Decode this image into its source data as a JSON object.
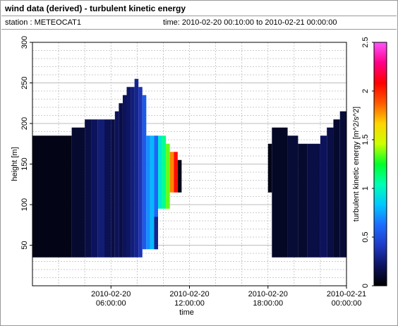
{
  "header": {
    "title": "wind data (derived) - turbulent kinetic energy",
    "station": "station : METEOCAT1",
    "time_range": "time: 2010-02-20 00:10:00 to 2010-02-21 00:00:00"
  },
  "colors": {
    "background": "#ffffff",
    "grid": "#bdbdbd",
    "frame": "#9a9a9a",
    "colormap": [
      "#000000",
      "#0d1460",
      "#1f3bc6",
      "#1d6cff",
      "#00c8ff",
      "#00ffb4",
      "#00ff2a",
      "#ccff00",
      "#ffd400",
      "#ff5a00",
      "#ff0000",
      "#ff0088",
      "#ff55ff"
    ]
  },
  "chart_data": {
    "type": "heatmap",
    "xlabel": "time",
    "ylabel": "height [m]",
    "colorbar_label": "turbulent kinetic energy [m^2/s^2]",
    "x_ticks": [
      {
        "hour": 6,
        "line1": "2010-02-20",
        "line2": "06:00:00"
      },
      {
        "hour": 12,
        "line1": "2010-02-20",
        "line2": "12:00:00"
      },
      {
        "hour": 18,
        "line1": "2010-02-20",
        "line2": "18:00:00"
      },
      {
        "hour": 24,
        "line1": "2010-02-21",
        "line2": "00:00:00"
      }
    ],
    "xlim_hours": [
      0,
      24
    ],
    "ylim": [
      0,
      300
    ],
    "y_ticks": [
      "50",
      "100",
      "150",
      "200",
      "250",
      "300"
    ],
    "y_tick_values": [
      50,
      100,
      150,
      200,
      250,
      300
    ],
    "y_grid_step": 10,
    "colorbar_ticks": [
      "0",
      "0.5",
      "1",
      "1.5",
      "2",
      "2.5"
    ],
    "colorbar_tick_values": [
      0,
      0.5,
      1,
      1.5,
      2,
      2.5
    ],
    "colorbar_range": [
      0,
      2.5
    ],
    "grid": true,
    "columns": [
      {
        "t0": 0.0,
        "t1": 3.0,
        "y0": 35,
        "y1": 185,
        "v": 0.05
      },
      {
        "t0": 3.0,
        "t1": 4.0,
        "y0": 35,
        "y1": 195,
        "v": 0.1
      },
      {
        "t0": 4.0,
        "t1": 4.5,
        "y0": 35,
        "y1": 205,
        "v": 0.15
      },
      {
        "t0": 4.5,
        "t1": 5.0,
        "y0": 35,
        "y1": 205,
        "v": 0.2
      },
      {
        "t0": 5.0,
        "t1": 5.5,
        "y0": 35,
        "y1": 205,
        "v": 0.25
      },
      {
        "t0": 5.5,
        "t1": 6.0,
        "y0": 35,
        "y1": 205,
        "v": 0.18
      },
      {
        "t0": 6.0,
        "t1": 6.3,
        "y0": 35,
        "y1": 205,
        "v": 0.15
      },
      {
        "t0": 6.3,
        "t1": 6.6,
        "y0": 35,
        "y1": 215,
        "v": 0.2
      },
      {
        "t0": 6.6,
        "t1": 6.9,
        "y0": 35,
        "y1": 225,
        "v": 0.15
      },
      {
        "t0": 6.9,
        "t1": 7.2,
        "y0": 35,
        "y1": 235,
        "v": 0.2
      },
      {
        "t0": 7.2,
        "t1": 7.5,
        "y0": 35,
        "y1": 245,
        "v": 0.22
      },
      {
        "t0": 7.5,
        "t1": 7.8,
        "y0": 35,
        "y1": 245,
        "v": 0.26
      },
      {
        "t0": 7.8,
        "t1": 8.1,
        "y0": 35,
        "y1": 255,
        "v": 0.3
      },
      {
        "t0": 8.1,
        "t1": 8.4,
        "y0": 35,
        "y1": 245,
        "v": 0.38
      },
      {
        "t0": 8.4,
        "t1": 8.7,
        "y0": 45,
        "y1": 235,
        "v": 0.55
      },
      {
        "t0": 8.7,
        "t1": 9.0,
        "y0": 45,
        "y1": 185,
        "v": 0.7
      },
      {
        "t0": 9.0,
        "t1": 9.3,
        "y0": 45,
        "y1": 185,
        "v": 0.8
      },
      {
        "t0": 9.3,
        "t1": 9.6,
        "y0": 45,
        "y1": 185,
        "v": 0.6
      },
      {
        "t0": 9.3,
        "t1": 9.6,
        "y0": 45,
        "y1": 85,
        "v": 0.3
      },
      {
        "t0": 9.6,
        "t1": 9.9,
        "y0": 95,
        "y1": 185,
        "v": 0.95
      },
      {
        "t0": 9.9,
        "t1": 10.2,
        "y0": 95,
        "y1": 185,
        "v": 1.1
      },
      {
        "t0": 10.2,
        "t1": 10.5,
        "y0": 95,
        "y1": 175,
        "v": 1.35
      },
      {
        "t0": 10.5,
        "t1": 10.8,
        "y0": 115,
        "y1": 165,
        "v": 1.8
      },
      {
        "t0": 10.8,
        "t1": 11.1,
        "y0": 115,
        "y1": 165,
        "v": 2.05
      },
      {
        "t0": 11.1,
        "t1": 11.4,
        "y0": 115,
        "y1": 155,
        "v": 0.05
      },
      {
        "t0": 18.0,
        "t1": 18.3,
        "y0": 115,
        "y1": 175,
        "v": 0.05
      },
      {
        "t0": 18.3,
        "t1": 19.5,
        "y0": 35,
        "y1": 195,
        "v": 0.08
      },
      {
        "t0": 19.5,
        "t1": 20.3,
        "y0": 35,
        "y1": 185,
        "v": 0.12
      },
      {
        "t0": 20.3,
        "t1": 21.0,
        "y0": 35,
        "y1": 175,
        "v": 0.1
      },
      {
        "t0": 21.0,
        "t1": 22.0,
        "y0": 35,
        "y1": 175,
        "v": 0.15
      },
      {
        "t0": 22.0,
        "t1": 22.5,
        "y0": 35,
        "y1": 185,
        "v": 0.2
      },
      {
        "t0": 22.5,
        "t1": 23.0,
        "y0": 35,
        "y1": 195,
        "v": 0.15
      },
      {
        "t0": 23.0,
        "t1": 23.5,
        "y0": 35,
        "y1": 205,
        "v": 0.1
      },
      {
        "t0": 23.5,
        "t1": 24.0,
        "y0": 35,
        "y1": 215,
        "v": 0.12
      }
    ]
  }
}
